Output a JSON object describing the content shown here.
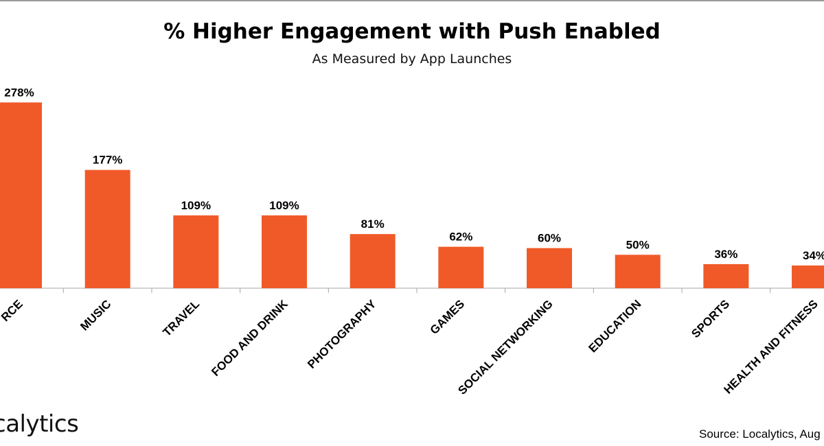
{
  "chart_data": {
    "type": "bar",
    "title": "% Higher Engagement with Push Enabled",
    "subtitle": "As Measured by App Launches",
    "categories": [
      "RCE",
      "MUSIC",
      "TRAVEL",
      "FOOD AND DRINK",
      "PHOTOGRAPHY",
      "GAMES",
      "SOCIAL NETWORKING",
      "EDUCATION",
      "SPORTS",
      "HEALTH AND FITNESS"
    ],
    "values": [
      278,
      177,
      109,
      109,
      81,
      62,
      60,
      50,
      36,
      34
    ],
    "data_labels": [
      "278%",
      "177%",
      "109%",
      "109%",
      "81%",
      "62%",
      "60%",
      "50%",
      "36%",
      "34%"
    ],
    "xlabel": "",
    "ylabel": "",
    "ylim": [
      0,
      300
    ],
    "grid": false,
    "legend": "none",
    "bar_color": "#f05a28"
  },
  "branding": {
    "logo_text": "calytics"
  },
  "source": "Source: Localytics, Aug"
}
